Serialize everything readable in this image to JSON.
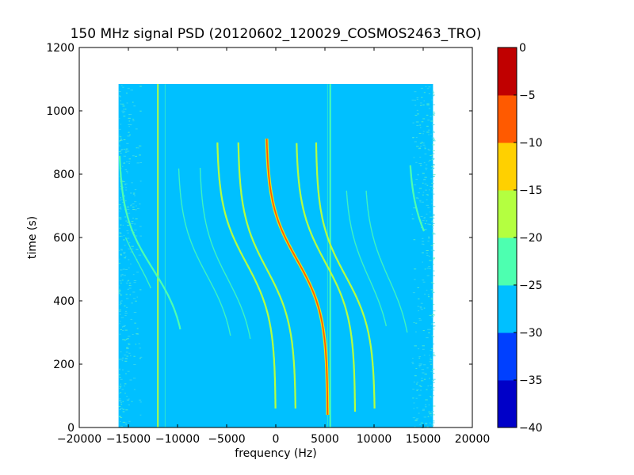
{
  "chart_data": {
    "type": "heatmap",
    "title": "150 MHz signal PSD (20120602_120029_COSMOS2463_TRO)",
    "xlabel": "frequency (Hz)",
    "ylabel": "time (s)",
    "xlim": [
      -20000,
      20000
    ],
    "ylim": [
      0,
      1200
    ],
    "xticks": [
      -20000,
      -15000,
      -10000,
      -5000,
      0,
      5000,
      10000,
      15000,
      20000
    ],
    "xtick_labels": [
      "−20000",
      "−15000",
      "−10000",
      "−5000",
      "0",
      "5000",
      "10000",
      "15000",
      "20000"
    ],
    "yticks": [
      0,
      200,
      400,
      600,
      800,
      1000,
      1200
    ],
    "ytick_labels": [
      "0",
      "200",
      "400",
      "600",
      "800",
      "1000",
      "1200"
    ],
    "data_extent": {
      "freq": [
        -16000,
        16000
      ],
      "time": [
        0,
        1085
      ]
    },
    "background_level": -27,
    "colorbar": {
      "levels": [
        -40,
        -35,
        -30,
        -25,
        -20,
        -15,
        -10,
        -5,
        0
      ],
      "tick_labels": [
        "−40",
        "−35",
        "−30",
        "−25",
        "−20",
        "−15",
        "−10",
        "−5",
        "0"
      ],
      "colors": [
        "#0000c8",
        "#0040ff",
        "#00c0ff",
        "#4dffb0",
        "#b4ff40",
        "#ffd000",
        "#ff5a00",
        "#c00000"
      ]
    },
    "doppler_tracks": [
      {
        "name": "main",
        "f_center": 2150,
        "amplitude": 3150,
        "t_center": 530,
        "width": 175,
        "t_range": [
          40,
          915
        ],
        "level": -8
      },
      {
        "name": "track-2",
        "f_center": -915,
        "amplitude": 2955,
        "t_center": 500,
        "width": 175,
        "t_range": [
          60,
          900
        ],
        "level": -18
      },
      {
        "name": "track-3",
        "f_center": -3010,
        "amplitude": 3010,
        "t_center": 520,
        "width": 175,
        "t_range": [
          60,
          900
        ],
        "level": -18
      },
      {
        "name": "track-4",
        "f_center": 5065,
        "amplitude": 3025,
        "t_center": 520,
        "width": 175,
        "t_range": [
          50,
          900
        ],
        "level": -18
      },
      {
        "name": "track-5",
        "f_center": 7080,
        "amplitude": 3020,
        "t_center": 480,
        "width": 175,
        "t_range": [
          60,
          900
        ],
        "level": -18
      },
      {
        "name": "track-6",
        "f_center": -7000,
        "amplitude": 3000,
        "t_center": 480,
        "width": 175,
        "t_range": [
          290,
          820
        ],
        "level": -23
      },
      {
        "name": "track-7",
        "f_center": -4900,
        "amplitude": 2900,
        "t_center": 470,
        "width": 175,
        "t_range": [
          280,
          820
        ],
        "level": -24
      },
      {
        "name": "track-8",
        "f_center": 9500,
        "amplitude": 2500,
        "t_center": 470,
        "width": 175,
        "t_range": [
          320,
          750
        ],
        "level": -24
      },
      {
        "name": "track-9",
        "f_center": 11500,
        "amplitude": 2500,
        "t_center": 470,
        "width": 175,
        "t_range": [
          300,
          750
        ],
        "level": -23
      },
      {
        "name": "track-10",
        "f_center": -12500,
        "amplitude": 3500,
        "t_center": 500,
        "width": 175,
        "t_range": [
          310,
          860
        ],
        "level": -21
      },
      {
        "name": "track-11",
        "f_center": -14000,
        "amplitude": 3000,
        "t_center": 520,
        "width": 175,
        "t_range": [
          440,
          600
        ],
        "level": -23
      },
      {
        "name": "track-12",
        "f_center": 16500,
        "amplitude": 3000,
        "t_center": 530,
        "width": 175,
        "t_range": [
          620,
          830
        ],
        "level": -21
      }
    ],
    "vertical_lines": [
      {
        "freq": -12000,
        "t_range": [
          0,
          1085
        ],
        "level": -20
      },
      {
        "freq": -11260,
        "t_range": [
          0,
          1085
        ],
        "level": -25
      },
      {
        "freq": 5270,
        "t_range": [
          0,
          1085
        ],
        "level": -25
      },
      {
        "freq": 5540,
        "t_range": [
          0,
          1085
        ],
        "level": -21
      }
    ]
  }
}
